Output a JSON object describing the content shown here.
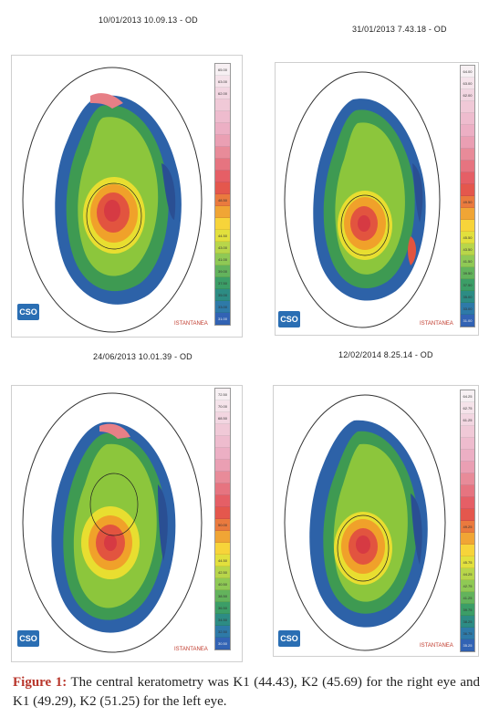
{
  "panels": [
    {
      "title": "10/01/2013 10.09.13 - OD",
      "mode": "ISTANTANEA",
      "logo": "CSO",
      "scale": [
        "65.00",
        "63.00",
        "62.00",
        "",
        "",
        "",
        "",
        "",
        "",
        "",
        "",
        "48.50",
        "",
        "",
        "44.50",
        "43.00",
        "41.00",
        "39.00",
        "37.50",
        "35.00",
        "33.00",
        "31.00",
        "29.00",
        "27.50"
      ]
    },
    {
      "title": "31/01/2013 7.43.18 - OD",
      "mode": "ISTANTANEA",
      "logo": "CSO",
      "scale": [
        "64.00",
        "63.00",
        "62.00",
        "",
        "",
        "",
        "",
        "",
        "",
        "",
        "",
        "49.50",
        "",
        "",
        "45.50",
        "43.50",
        "41.50",
        "39.50",
        "37.50",
        "35.00",
        "33.00",
        "31.00",
        "29.00",
        "27.00"
      ]
    },
    {
      "title": "24/06/2013 10.01.39 - OD",
      "mode": "ISTANTANEA",
      "logo": "CSO",
      "scale": [
        "72.50",
        "70.00",
        "68.50",
        "",
        "",
        "",
        "",
        "",
        "",
        "",
        "",
        "50.00",
        "",
        "",
        "44.50",
        "42.50",
        "40.50",
        "38.50",
        "36.50",
        "34.50",
        "32.50",
        "30.50",
        "28.50",
        "22.50"
      ]
    },
    {
      "title": "12/02/2014 8.25.14 - OD",
      "mode": "ISTANTANEA",
      "logo": "CSO",
      "scale": [
        "64.25",
        "62.75",
        "61.25",
        "",
        "",
        "",
        "",
        "",
        "",
        "",
        "",
        "49.25",
        "",
        "",
        "45.75",
        "44.25",
        "42.75",
        "41.25",
        "39.75",
        "38.25",
        "36.75",
        "35.25",
        "33.75",
        "28.25"
      ]
    }
  ],
  "scale_colors": [
    "#f7f0f3",
    "#f5e3ea",
    "#f2d6e1",
    "#f0c9d7",
    "#eebcce",
    "#ecafc4",
    "#ea9fb3",
    "#e88b99",
    "#e67480",
    "#e55f66",
    "#e4574d",
    "#ea7a3e",
    "#f0a535",
    "#f7d43a",
    "#e2e03d",
    "#b8d64a",
    "#8fc955",
    "#63b35c",
    "#3c9e67",
    "#2d8c84",
    "#2e7aa8",
    "#3263b4",
    "#2d4f9e",
    "#2a3b7e"
  ],
  "caption": {
    "label": "Figure 1:",
    "text": " The central keratometry was K1 (44.43), K2 (45.69) for the right eye and K1 (49.29), K2 (51.25) for the left eye."
  }
}
